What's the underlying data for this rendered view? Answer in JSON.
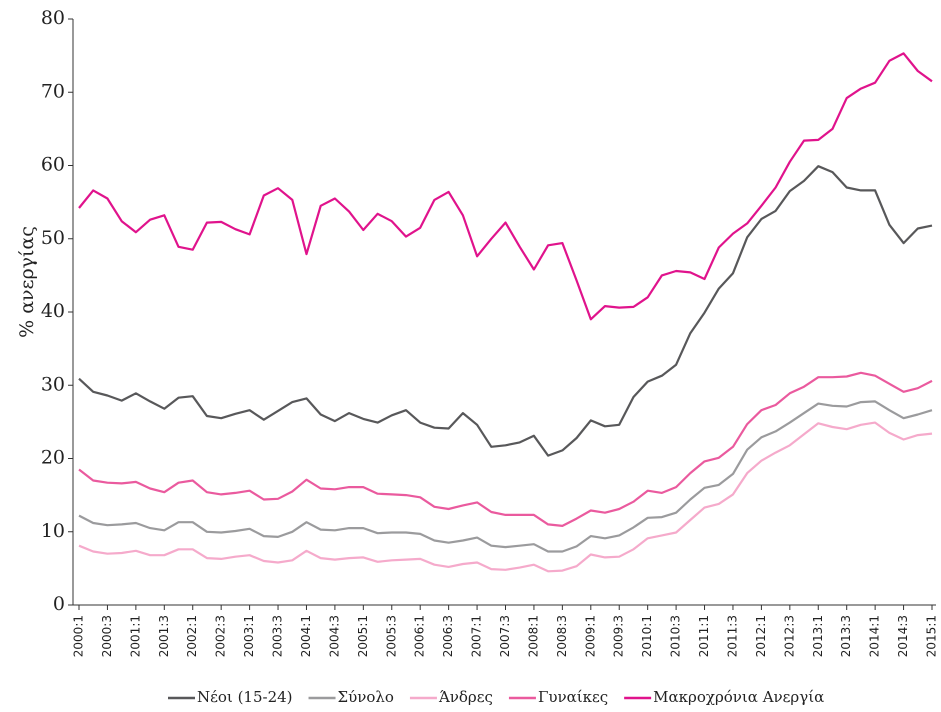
{
  "chart_data": {
    "type": "line",
    "y_label": "% ανεργίας",
    "categories": [
      "2000:1",
      null,
      "2000:3",
      null,
      "2001:1",
      null,
      "2001:3",
      null,
      "2002:1",
      null,
      "2002:3",
      null,
      "2003:1",
      null,
      "2003:3",
      null,
      "2004:1",
      null,
      "2004:3",
      null,
      "2005:1",
      null,
      "2005:3",
      null,
      "2006:1",
      null,
      "2006:3",
      null,
      "2007:1",
      null,
      "2007:3",
      null,
      "2008:1",
      null,
      "2008:3",
      null,
      "2009:1",
      null,
      "2009:3",
      null,
      "2010:1",
      null,
      "2010:3",
      null,
      "2011:1",
      null,
      "2011:3",
      null,
      "2012:1",
      null,
      "2012:3",
      null,
      "2013:1",
      null,
      "2013:3",
      null,
      "2014:1",
      null,
      "2014:3",
      null,
      "2015:1"
    ],
    "ylim": [
      0,
      80
    ],
    "yticks": [
      0,
      10,
      20,
      30,
      40,
      50,
      60,
      70,
      80
    ],
    "grid": false,
    "series": [
      {
        "name": "Νέοι (15-24)",
        "color": "#58585a",
        "values": [
          30.9,
          29.1,
          28.6,
          27.9,
          28.9,
          27.8,
          26.8,
          28.3,
          28.5,
          25.8,
          25.5,
          26.1,
          26.6,
          25.3,
          26.5,
          27.7,
          28.2,
          26.0,
          25.1,
          26.2,
          25.4,
          24.9,
          25.9,
          26.6,
          24.9,
          24.2,
          24.1,
          26.2,
          24.6,
          21.6,
          21.8,
          22.2,
          23.1,
          20.4,
          21.1,
          22.8,
          25.2,
          24.4,
          24.6,
          28.4,
          30.5,
          31.3,
          32.8,
          37.1,
          39.9,
          43.2,
          45.3,
          50.2,
          52.7,
          53.8,
          56.5,
          57.9,
          59.9,
          59.1,
          57.0,
          56.6,
          56.6,
          51.9,
          49.4,
          51.4,
          51.8
        ]
      },
      {
        "name": "Σύνολο",
        "color": "#9b9b9d",
        "values": [
          12.2,
          11.2,
          10.9,
          11.0,
          11.2,
          10.5,
          10.2,
          11.3,
          11.3,
          10.0,
          9.9,
          10.1,
          10.4,
          9.4,
          9.3,
          10.0,
          11.3,
          10.3,
          10.2,
          10.5,
          10.5,
          9.8,
          9.9,
          9.9,
          9.7,
          8.8,
          8.5,
          8.8,
          9.2,
          8.1,
          7.9,
          8.1,
          8.3,
          7.3,
          7.3,
          8.0,
          9.4,
          9.1,
          9.5,
          10.6,
          11.9,
          12.0,
          12.6,
          14.4,
          16.0,
          16.4,
          17.9,
          21.2,
          22.9,
          23.7,
          24.9,
          26.2,
          27.5,
          27.2,
          27.1,
          27.7,
          27.8,
          26.6,
          25.5,
          26.0,
          26.6
        ]
      },
      {
        "name": "Άνδρες",
        "color": "#f5aacb",
        "values": [
          8.1,
          7.3,
          7.0,
          7.1,
          7.4,
          6.8,
          6.8,
          7.6,
          7.6,
          6.4,
          6.3,
          6.6,
          6.8,
          6.0,
          5.8,
          6.1,
          7.4,
          6.4,
          6.2,
          6.4,
          6.5,
          5.9,
          6.1,
          6.2,
          6.3,
          5.5,
          5.2,
          5.6,
          5.8,
          4.9,
          4.8,
          5.1,
          5.5,
          4.6,
          4.7,
          5.3,
          6.9,
          6.5,
          6.6,
          7.6,
          9.1,
          9.5,
          9.9,
          11.6,
          13.3,
          13.8,
          15.1,
          18.0,
          19.7,
          20.8,
          21.8,
          23.3,
          24.8,
          24.3,
          24.0,
          24.6,
          24.9,
          23.5,
          22.6,
          23.2,
          23.4
        ]
      },
      {
        "name": "Γυναίκες",
        "color": "#ea5a9e",
        "values": [
          18.5,
          17.0,
          16.7,
          16.6,
          16.8,
          15.9,
          15.4,
          16.7,
          17.0,
          15.4,
          15.1,
          15.3,
          15.6,
          14.4,
          14.5,
          15.5,
          17.1,
          15.9,
          15.8,
          16.1,
          16.1,
          15.2,
          15.1,
          15.0,
          14.7,
          13.4,
          13.1,
          13.6,
          14.0,
          12.7,
          12.3,
          12.3,
          12.3,
          11.0,
          10.8,
          11.8,
          12.9,
          12.6,
          13.1,
          14.1,
          15.6,
          15.3,
          16.1,
          18.0,
          19.6,
          20.1,
          21.6,
          24.7,
          26.6,
          27.3,
          28.9,
          29.8,
          31.1,
          31.1,
          31.2,
          31.7,
          31.3,
          30.2,
          29.1,
          29.6,
          30.6
        ]
      },
      {
        "name": "Μακροχρόνια Ανεργία",
        "color": "#e0138c",
        "values": [
          54.2,
          56.6,
          55.5,
          52.4,
          50.9,
          52.6,
          53.2,
          48.9,
          48.5,
          52.2,
          52.3,
          51.3,
          50.6,
          55.9,
          56.9,
          55.3,
          47.9,
          54.5,
          55.5,
          53.7,
          51.2,
          53.4,
          52.4,
          50.3,
          51.5,
          55.3,
          56.4,
          53.2,
          47.6,
          50.0,
          52.2,
          48.9,
          45.8,
          49.1,
          49.4,
          44.3,
          39.0,
          40.8,
          40.6,
          40.7,
          42.0,
          45.0,
          45.6,
          45.4,
          44.5,
          48.8,
          50.7,
          52.1,
          54.5,
          57.0,
          60.5,
          63.4,
          63.5,
          65.0,
          69.2,
          70.5,
          71.3,
          74.3,
          75.3,
          72.9,
          71.5
        ]
      }
    ]
  }
}
